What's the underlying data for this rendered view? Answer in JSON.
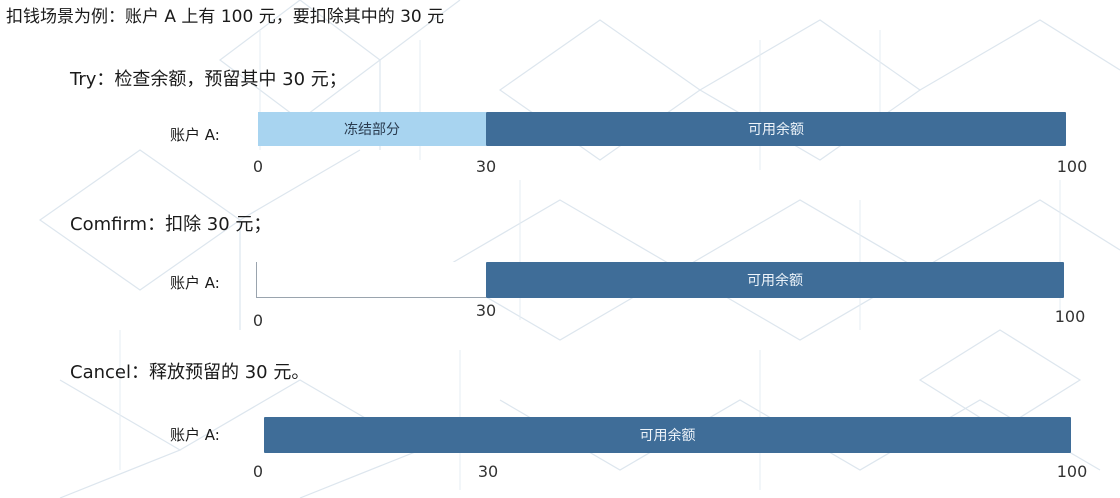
{
  "intro": "扣钱场景为例：账户 A 上有 100 元，要扣除其中的 30 元",
  "steps": [
    {
      "title": "Try：检查余额，预留其中 30 元；",
      "account_label": "账户 A:",
      "frozen_label": "冻结部分",
      "available_label": "可用余额",
      "ticks": [
        "0",
        "30",
        "100"
      ]
    },
    {
      "title": "Comfirm：扣除 30 元；",
      "account_label": "账户 A:",
      "available_label": "可用余额",
      "ticks": [
        "0",
        "30",
        "100"
      ]
    },
    {
      "title": "Cancel：释放预留的 30 元。",
      "account_label": "账户 A:",
      "available_label": "可用余额",
      "ticks": [
        "0",
        "30",
        "100"
      ]
    }
  ],
  "colors": {
    "frozen": "#a8d4f0",
    "available": "#3f6d98",
    "background_pattern": "#d9e3ec"
  }
}
